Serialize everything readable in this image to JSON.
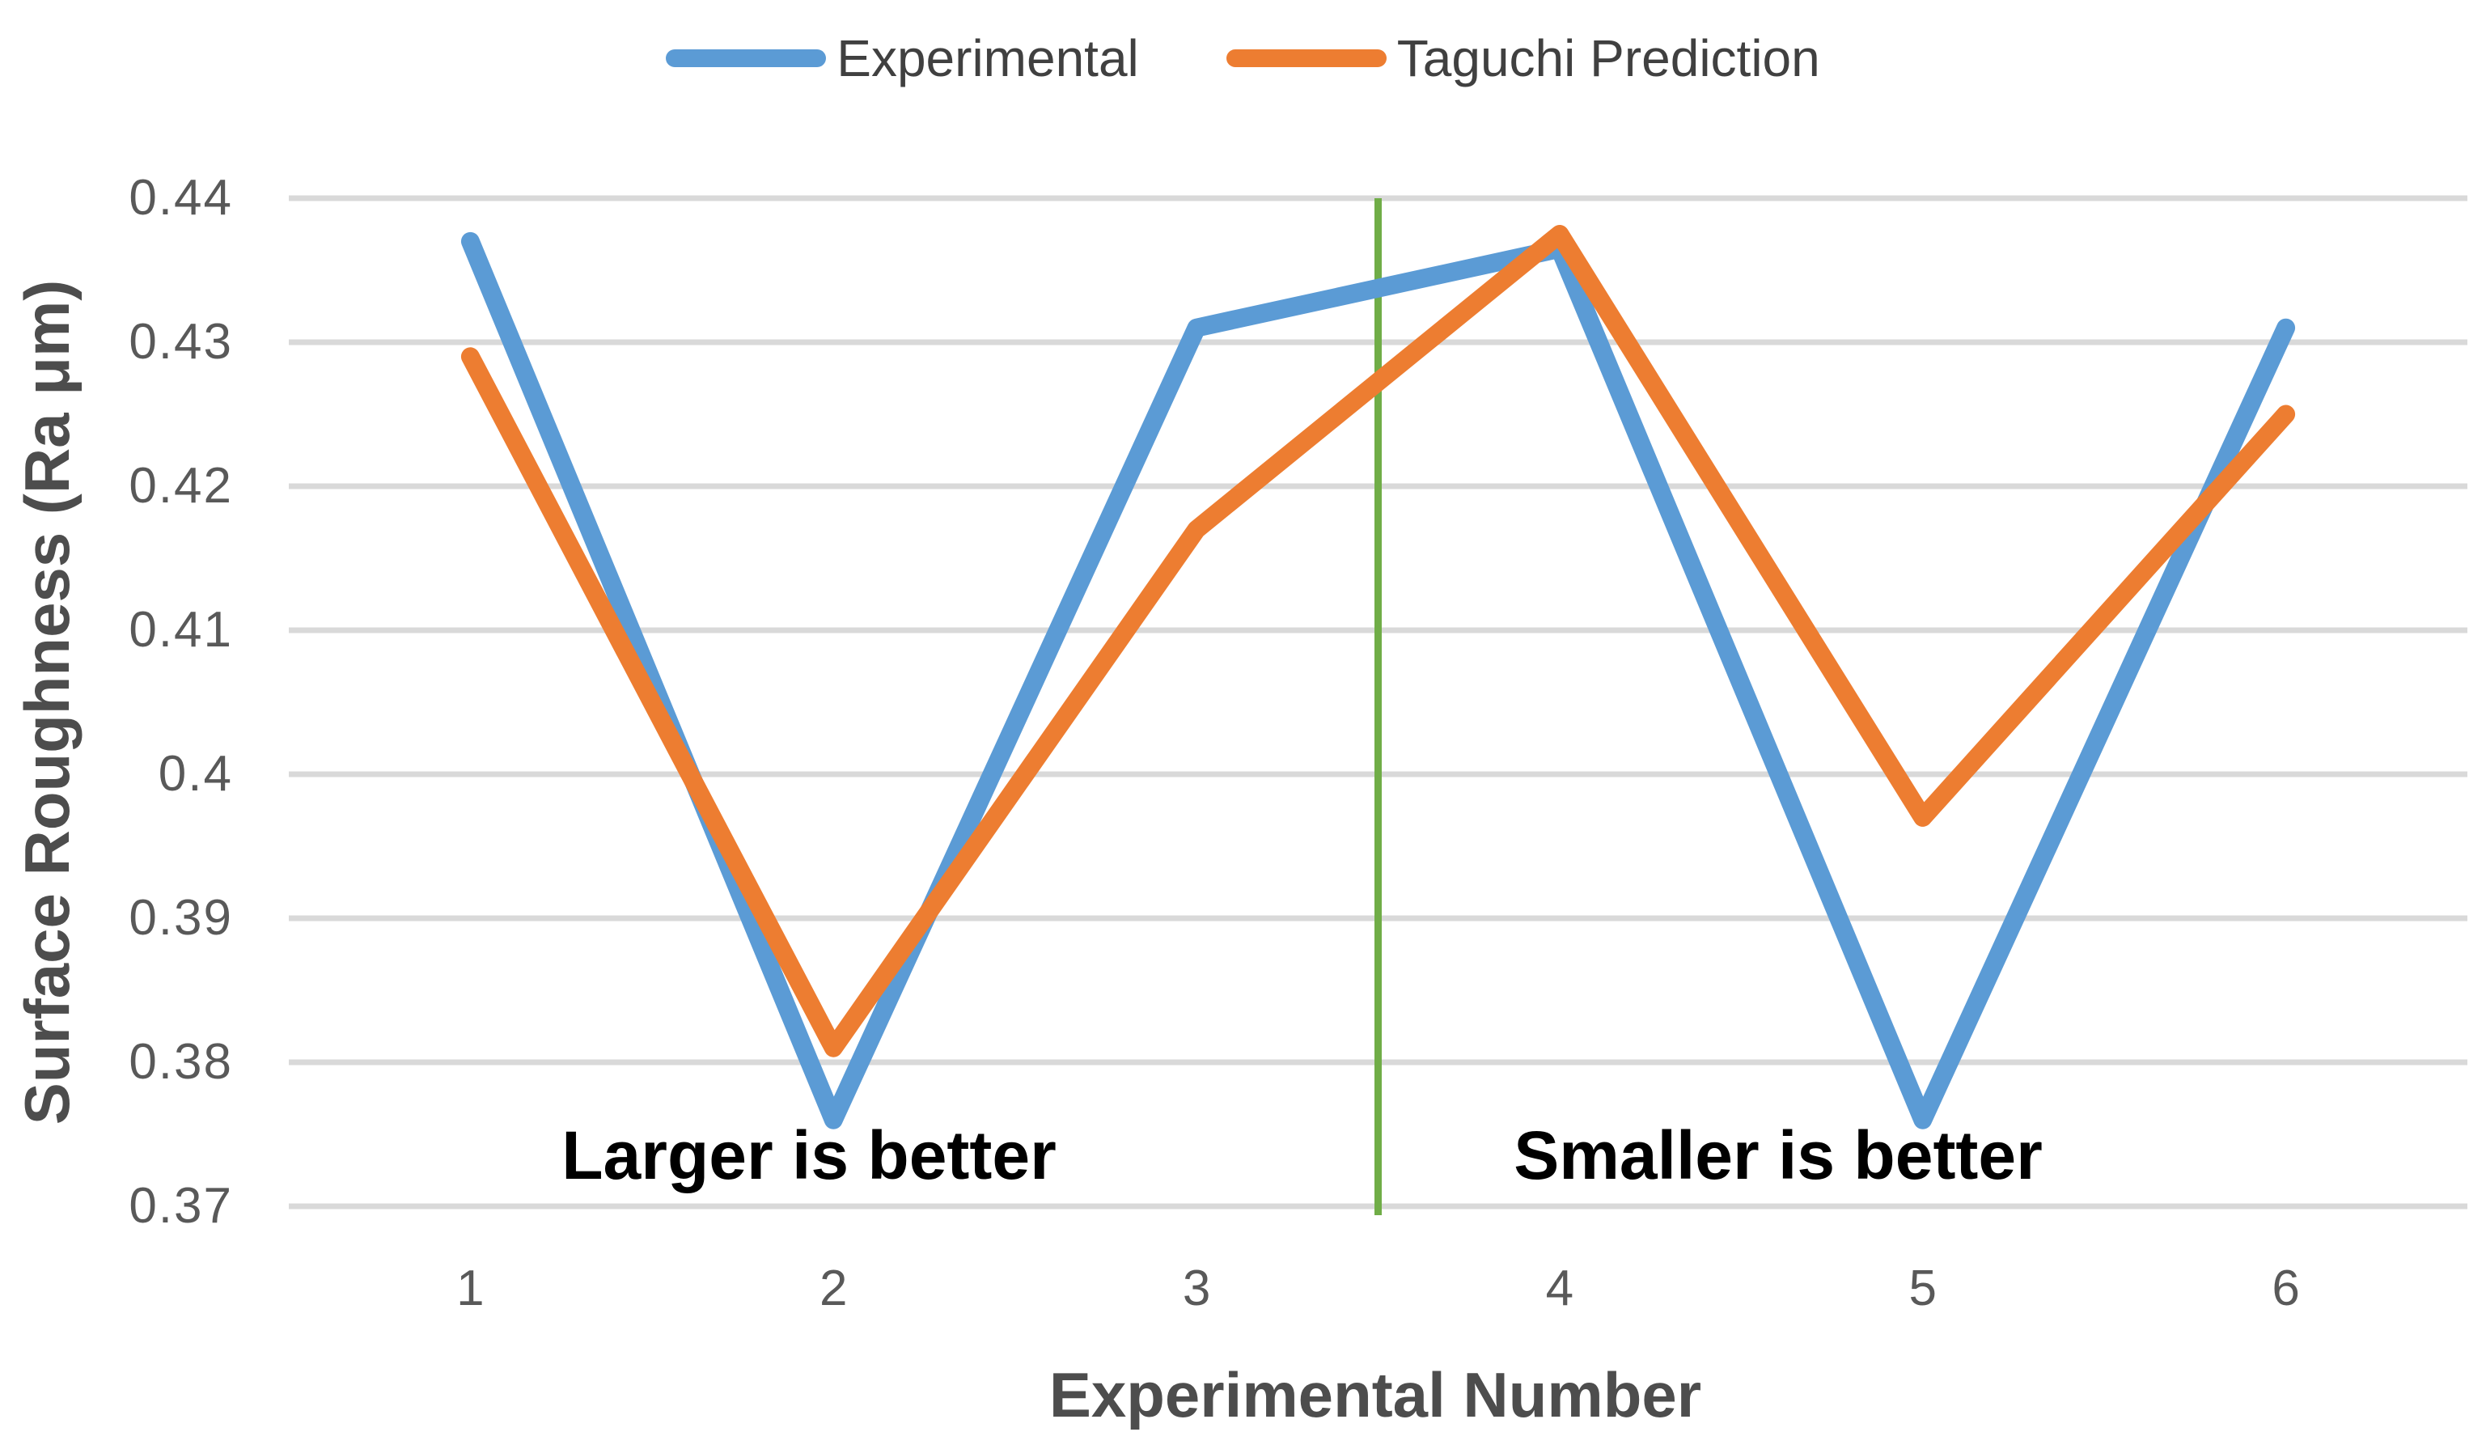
{
  "chart_data": {
    "type": "line",
    "categories": [
      "1",
      "2",
      "3",
      "4",
      "5",
      "6"
    ],
    "series": [
      {
        "name": "Experimental",
        "color": "#5B9BD5",
        "values": [
          0.437,
          0.376,
          0.431,
          0.4365,
          0.376,
          0.431
        ]
      },
      {
        "name": "Taguchi Prediction",
        "color": "#ED7D31",
        "values": [
          0.429,
          0.381,
          0.417,
          0.4375,
          0.397,
          0.425
        ]
      }
    ],
    "xlabel": "Experimental Number",
    "ylabel": "Surface Roughness (Ra μm)",
    "ylim": [
      0.37,
      0.44
    ],
    "ytick_labels": [
      "0.44",
      "0.43",
      "0.42",
      "0.41",
      "0.4",
      "0.39",
      "0.38",
      "0.37"
    ],
    "grid": true,
    "gridline_color": "#D9D9D9",
    "legend_position": "top",
    "divider": {
      "position_between_categories": "3|4",
      "x_value": 3.5,
      "color": "#70AD47"
    },
    "annotations": [
      {
        "text": "Larger is better",
        "side": "left-of-divider"
      },
      {
        "text": "Smaller is better",
        "side": "right-of-divider"
      }
    ],
    "tick_text_color": "#595959",
    "axis_title_color": "#4d4d4d",
    "annotation_text_color": "#000000"
  }
}
